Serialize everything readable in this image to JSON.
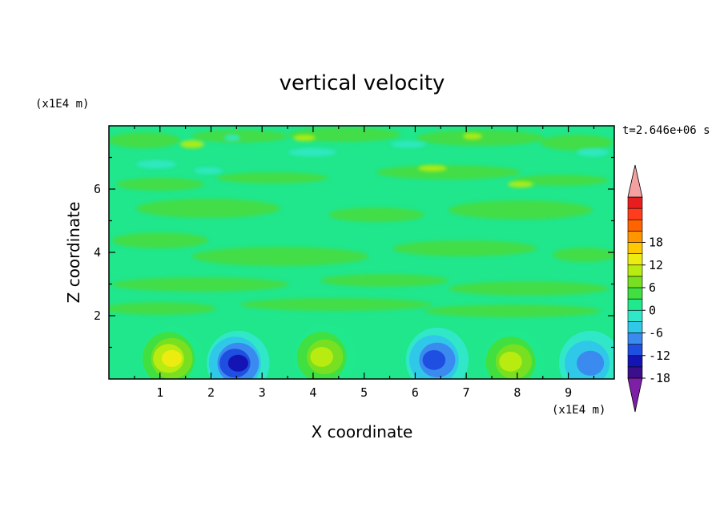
{
  "chart_data": {
    "type": "heatmap",
    "title": "vertical velocity",
    "xlabel": "X coordinate",
    "ylabel": "Z coordinate",
    "x_unit": "(x1E4 m)",
    "y_unit": "(x1E4 m)",
    "time_label": "t=2.646e+06 s",
    "xlim": [
      0,
      9.9
    ],
    "ylim": [
      0,
      8.0
    ],
    "x_ticks": [
      1,
      2,
      3,
      4,
      5,
      6,
      7,
      8,
      9
    ],
    "y_ticks": [
      2,
      4,
      6
    ],
    "colorbar": {
      "min": -21,
      "max": 21,
      "step": 3,
      "tick_labels": [
        "18",
        "12",
        "6",
        "0",
        "-6",
        "-12",
        "-18"
      ],
      "colors": [
        "#7f1fa8",
        "#3b0f8c",
        "#1414b4",
        "#1f4fe0",
        "#3a8af0",
        "#30c8e8",
        "#30e8c8",
        "#20e88c",
        "#40e040",
        "#78e020",
        "#b8ec10",
        "#ecec10",
        "#ffc800",
        "#ff9600",
        "#ff6400",
        "#ff3c1e",
        "#e81e1e",
        "#f5a0a0"
      ]
    },
    "cells": [
      {
        "x": 1.2,
        "z": 0.75,
        "value": 15
      },
      {
        "x": 2.5,
        "z": 0.6,
        "value": -17
      },
      {
        "x": 4.2,
        "z": 0.8,
        "value": 12
      },
      {
        "x": 6.4,
        "z": 0.7,
        "value": -12
      },
      {
        "x": 7.9,
        "z": 0.65,
        "value": 13
      },
      {
        "x": 9.4,
        "z": 0.6,
        "value": -11
      }
    ]
  }
}
